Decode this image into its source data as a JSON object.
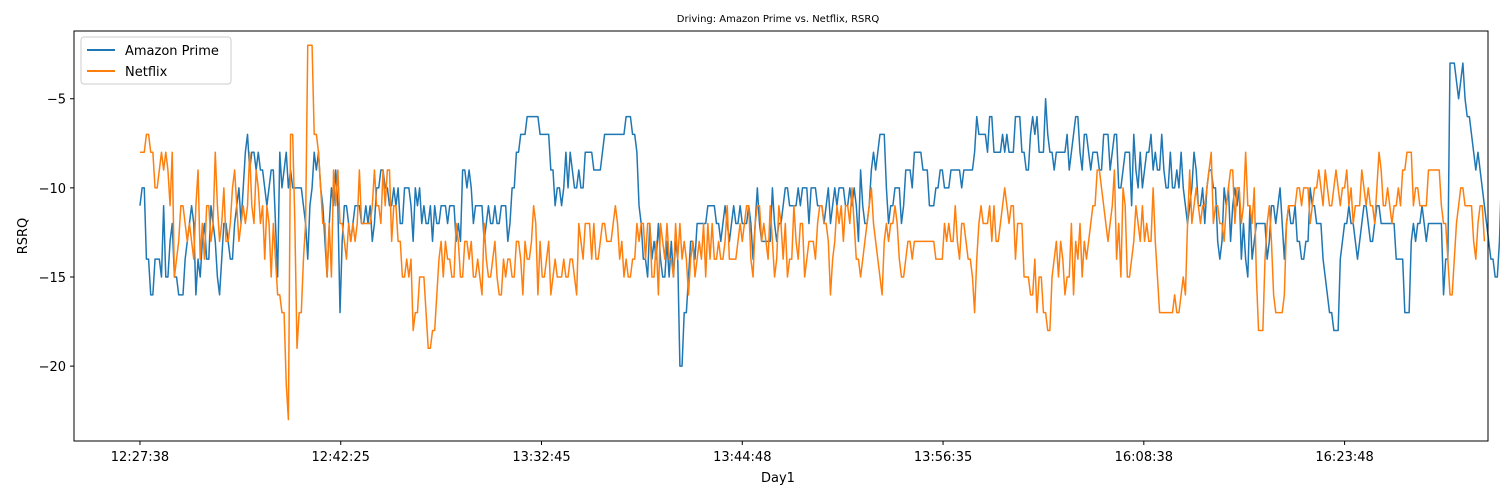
{
  "chart_data": {
    "type": "line",
    "title": "Driving: Amazon Prime vs. Netflix, RSRQ",
    "xlabel": "Day1",
    "ylabel": "RSRQ",
    "x_tick_labels": [
      "12:27:38",
      "12:42:25",
      "13:32:45",
      "13:44:48",
      "13:56:35",
      "16:08:38",
      "16:23:48"
    ],
    "x_tick_positions": [
      0,
      70,
      140,
      210,
      280,
      350,
      420
    ],
    "xlim": [
      -23,
      470
    ],
    "ylim": [
      -24.2,
      -1.2
    ],
    "y_ticks": [
      -20,
      -15,
      -10,
      -5
    ],
    "y_tick_labels": [
      "−20",
      "−15",
      "−10",
      "−5"
    ],
    "grid": false,
    "legend_position": "top-left",
    "series": [
      {
        "name": "Amazon Prime",
        "color": "#1f77b4",
        "values": [
          -11,
          -10,
          -10,
          -14,
          -14,
          -16,
          -16,
          -14,
          -14,
          -14,
          -15,
          -11,
          -15,
          -15,
          -13,
          -12,
          -15,
          -15,
          -16,
          -16,
          -16,
          -14,
          -13,
          -12,
          -11,
          -12,
          -16,
          -14,
          -15,
          -13,
          -12,
          -14,
          -14,
          -11,
          -12,
          -13,
          -15,
          -16,
          -14,
          -12,
          -12,
          -13,
          -14,
          -14,
          -12,
          -11,
          -10,
          -12,
          -10,
          -8,
          -7,
          -9,
          -8,
          -8,
          -9,
          -8,
          -9,
          -9,
          -10,
          -11,
          -10,
          -9,
          -9,
          -12,
          -15,
          -8,
          -10,
          -9,
          -8,
          -10,
          -9,
          -10,
          -10,
          -10,
          -10,
          -10,
          -11,
          -12,
          -14,
          -11,
          -10,
          -8,
          -9,
          -8,
          -10,
          -11,
          -13,
          -15,
          -12,
          -10,
          -11,
          -9,
          -11,
          -17,
          -13,
          -11,
          -11,
          -12,
          -13,
          -12,
          -11,
          -11,
          -11,
          -12,
          -12,
          -11,
          -12,
          -11,
          -13,
          -12,
          -10,
          -10,
          -9,
          -9,
          -10,
          -10,
          -11,
          -11,
          -10,
          -11,
          -10,
          -12,
          -12,
          -10,
          -10,
          -10,
          -11,
          -13,
          -10,
          -11,
          -10,
          -12,
          -11,
          -12,
          -12,
          -11,
          -13,
          -11,
          -12,
          -12,
          -11,
          -11,
          -11,
          -12,
          -11,
          -11,
          -11,
          -13,
          -12,
          -13,
          -9,
          -9,
          -10,
          -9,
          -10,
          -12,
          -11,
          -11,
          -11,
          -11,
          -13,
          -12,
          -11,
          -12,
          -12,
          -11,
          -12,
          -12,
          -11,
          -11,
          -11,
          -13,
          -12,
          -10,
          -10,
          -8,
          -8,
          -7,
          -7,
          -7,
          -6,
          -6,
          -6,
          -6,
          -6,
          -6,
          -7,
          -7,
          -7,
          -7,
          -7,
          -9,
          -9,
          -11,
          -10,
          -10,
          -11,
          -10,
          -8,
          -10,
          -8,
          -9,
          -10,
          -10,
          -9,
          -10,
          -10,
          -8,
          -8,
          -8,
          -8,
          -9,
          -9,
          -9,
          -9,
          -8,
          -7,
          -7,
          -7,
          -7,
          -7,
          -7,
          -7,
          -7,
          -7,
          -7,
          -6,
          -6,
          -6,
          -7,
          -7,
          -8,
          -11,
          -12,
          -14,
          -14,
          -15,
          -12,
          -14,
          -13,
          -14,
          -12,
          -14,
          -15,
          -15,
          -13,
          -15,
          -13,
          -15,
          -13,
          -14,
          -20,
          -20,
          -17,
          -17,
          -15,
          -13,
          -13,
          -14,
          -12,
          -12,
          -12,
          -12,
          -12,
          -11,
          -11,
          -11,
          -11,
          -12,
          -12,
          -13,
          -12,
          -11,
          -12,
          -13,
          -12,
          -11,
          -12,
          -12,
          -11,
          -12,
          -12,
          -12,
          -11,
          -12,
          -14,
          -12,
          -10,
          -12,
          -13,
          -13,
          -13,
          -13,
          -13,
          -10,
          -12,
          -13,
          -12,
          -12,
          -11,
          -10,
          -10,
          -11,
          -11,
          -11,
          -11,
          -10,
          -11,
          -10,
          -10,
          -10,
          -12,
          -10,
          -10,
          -10,
          -11,
          -11,
          -11,
          -12,
          -11,
          -10,
          -12,
          -11,
          -10,
          -11,
          -10,
          -10,
          -10,
          -11,
          -11,
          -10,
          -11,
          -10,
          -11,
          -13,
          -9,
          -11,
          -12,
          -12,
          -11,
          -9,
          -8,
          -9,
          -8,
          -7,
          -7,
          -7,
          -10,
          -12,
          -11,
          -11,
          -10,
          -10,
          -10,
          -12,
          -11,
          -9,
          -9,
          -9,
          -10,
          -8,
          -8,
          -8,
          -8,
          -9,
          -9,
          -9,
          -11,
          -11,
          -11,
          -10,
          -10,
          -9,
          -9,
          -10,
          -10,
          -10,
          -9,
          -9,
          -9,
          -9,
          -9,
          -10,
          -9,
          -9,
          -9,
          -9,
          -9,
          -8,
          -6,
          -7,
          -7,
          -7,
          -7,
          -8,
          -6,
          -6,
          -8,
          -8,
          -8,
          -8,
          -7,
          -8,
          -7,
          -8,
          -8,
          -8,
          -6,
          -6,
          -6,
          -8,
          -8,
          -9,
          -9,
          -7,
          -6,
          -7,
          -6,
          -8,
          -8,
          -8,
          -5,
          -7,
          -8,
          -8,
          -9,
          -8,
          -8,
          -8,
          -8,
          -8,
          -7,
          -9,
          -8,
          -7,
          -6,
          -6,
          -8,
          -9,
          -7,
          -7,
          -8,
          -9,
          -8,
          -8,
          -8,
          -9,
          -9,
          -7,
          -7,
          -7,
          -9,
          -8,
          -7,
          -7,
          -10,
          -10,
          -9,
          -8,
          -8,
          -8,
          -11,
          -7,
          -9,
          -10,
          -8,
          -10,
          -9,
          -8,
          -8,
          -7,
          -9,
          -8,
          -9,
          -9,
          -7,
          -9,
          -10,
          -10,
          -8,
          -10,
          -10,
          -9,
          -10,
          -8,
          -10,
          -11,
          -12,
          -11,
          -10,
          -8,
          -9,
          -11,
          -11,
          -10,
          -12,
          -10,
          -9,
          -9,
          -10,
          -10,
          -13,
          -14,
          -13,
          -10,
          -11,
          -10,
          -13,
          -11,
          -10,
          -11,
          -10,
          -14,
          -12,
          -14,
          -15,
          -11,
          -14,
          -13,
          -12,
          -12,
          -12,
          -12,
          -12,
          -14,
          -13,
          -11,
          -11,
          -12,
          -11,
          -10,
          -12,
          -14,
          -12,
          -11,
          -12,
          -12,
          -11,
          -13,
          -13,
          -14,
          -14,
          -13,
          -13,
          -10,
          -11,
          -11,
          -12,
          -12,
          -12,
          -14,
          -15,
          -16,
          -17,
          -17,
          -18,
          -18,
          -18,
          -14,
          -13,
          -12,
          -12,
          -11,
          -12,
          -12,
          -13,
          -14,
          -13,
          -12,
          -11,
          -11,
          -12,
          -13,
          -13,
          -12,
          -11,
          -11,
          -12,
          -12,
          -12,
          -12,
          -12,
          -12,
          -12,
          -14,
          -14,
          -14,
          -14,
          -17,
          -17,
          -17,
          -13,
          -12,
          -13,
          -12,
          -12,
          -11,
          -12,
          -13,
          -12,
          -12,
          -12,
          -12,
          -12,
          -12,
          -12,
          -16,
          -14,
          -14,
          -3,
          -3,
          -3,
          -4,
          -5,
          -4,
          -3,
          -5,
          -6,
          -6,
          -7,
          -8,
          -9,
          -8,
          -9,
          -10,
          -11,
          -12,
          -13,
          -14,
          -14,
          -15,
          -15,
          -13,
          -9,
          -9,
          -9
        ],
        "x_start": 0,
        "x_step": 0.75
      },
      {
        "name": "Netflix",
        "color": "#ff7f0e",
        "values": [
          -8,
          -8,
          -8,
          -7,
          -7,
          -8,
          -8,
          -10,
          -10,
          -9,
          -8,
          -9,
          -8,
          -9,
          -11,
          -8,
          -15,
          -14,
          -13,
          -11,
          -11,
          -12,
          -13,
          -12,
          -13,
          -14,
          -11,
          -9,
          -14,
          -12,
          -14,
          -11,
          -11,
          -13,
          -12,
          -8,
          -11,
          -13,
          -12,
          -10,
          -13,
          -13,
          -12,
          -10,
          -9,
          -11,
          -13,
          -12,
          -11,
          -12,
          -11,
          -8,
          -11,
          -12,
          -9,
          -10,
          -12,
          -11,
          -14,
          -11,
          -12,
          -15,
          -12,
          -14,
          -16,
          -16,
          -17,
          -17,
          -21,
          -23,
          -7,
          -7,
          -12,
          -19,
          -17,
          -17,
          -14,
          -12,
          -2,
          -2,
          -2,
          -7,
          -7,
          -8,
          -10,
          -12,
          -12,
          -15,
          -12,
          -15,
          -9,
          -11,
          -9,
          -12,
          -12,
          -13,
          -14,
          -12,
          -13,
          -12,
          -13,
          -12,
          -9,
          -12,
          -12,
          -12,
          -12,
          -12,
          -11,
          -9,
          -11,
          -11,
          -12,
          -9,
          -11,
          -9,
          -9,
          -13,
          -11,
          -11,
          -13,
          -13,
          -15,
          -15,
          -14,
          -15,
          -14,
          -18,
          -17,
          -17,
          -15,
          -15,
          -15,
          -17,
          -19,
          -19,
          -18,
          -18,
          -16,
          -14,
          -13,
          -15,
          -13,
          -14,
          -14,
          -15,
          -15,
          -12,
          -13,
          -15,
          -15,
          -13,
          -13,
          -14,
          -13,
          -15,
          -15,
          -14,
          -15,
          -16,
          -12,
          -14,
          -15,
          -15,
          -14,
          -13,
          -15,
          -16,
          -16,
          -14,
          -15,
          -14,
          -14,
          -15,
          -15,
          -13,
          -13,
          -14,
          -16,
          -13,
          -14,
          -14,
          -13,
          -11,
          -12,
          -16,
          -13,
          -15,
          -15,
          -14,
          -13,
          -16,
          -15,
          -14,
          -15,
          -15,
          -15,
          -14,
          -15,
          -15,
          -14,
          -14,
          -15,
          -16,
          -12,
          -13,
          -14,
          -12,
          -12,
          -12,
          -14,
          -12,
          -14,
          -14,
          -13,
          -12,
          -12,
          -13,
          -13,
          -13,
          -12,
          -11,
          -12,
          -14,
          -13,
          -15,
          -14,
          -15,
          -15,
          -14,
          -14,
          -12,
          -13,
          -12,
          -12,
          -14,
          -12,
          -12,
          -15,
          -15,
          -13,
          -16,
          -12,
          -13,
          -14,
          -12,
          -14,
          -14,
          -15,
          -12,
          -14,
          -12,
          -14,
          -13,
          -14,
          -16,
          -14,
          -13,
          -15,
          -14,
          -13,
          -14,
          -12,
          -15,
          -12,
          -14,
          -12,
          -14,
          -14,
          -13,
          -14,
          -14,
          -13,
          -11,
          -14,
          -14,
          -14,
          -14,
          -13,
          -12,
          -13,
          -12,
          -11,
          -11,
          -14,
          -15,
          -12,
          -11,
          -11,
          -13,
          -12,
          -13,
          -14,
          -11,
          -13,
          -15,
          -14,
          -11,
          -12,
          -14,
          -12,
          -15,
          -14,
          -14,
          -11,
          -13,
          -14,
          -12,
          -12,
          -15,
          -14,
          -13,
          -13,
          -13,
          -14,
          -12,
          -11,
          -11,
          -12,
          -12,
          -13,
          -16,
          -14,
          -13,
          -11,
          -12,
          -11,
          -13,
          -11,
          -11,
          -12,
          -10,
          -12,
          -14,
          -14,
          -15,
          -14,
          -13,
          -12,
          -11,
          -10,
          -12,
          -13,
          -14,
          -15,
          -16,
          -13,
          -12,
          -13,
          -12,
          -12,
          -11,
          -12,
          -14,
          -15,
          -15,
          -14,
          -13,
          -13,
          -14,
          -13,
          -13,
          -13,
          -13,
          -13,
          -13,
          -13,
          -13,
          -13,
          -13,
          -14,
          -14,
          -14,
          -14,
          -12,
          -13,
          -12,
          -13,
          -13,
          -11,
          -13,
          -14,
          -12,
          -12,
          -13,
          -14,
          -14,
          -15,
          -17,
          -14,
          -12,
          -11,
          -12,
          -12,
          -12,
          -11,
          -13,
          -11,
          -13,
          -13,
          -12,
          -11,
          -10,
          -11,
          -12,
          -11,
          -11,
          -14,
          -12,
          -12,
          -12,
          -15,
          -15,
          -15,
          -16,
          -16,
          -14,
          -17,
          -15,
          -15,
          -17,
          -17,
          -18,
          -18,
          -15,
          -14,
          -13,
          -15,
          -13,
          -14,
          -16,
          -15,
          -15,
          -12,
          -16,
          -13,
          -14,
          -12,
          -15,
          -13,
          -14,
          -13,
          -12,
          -11,
          -11,
          -9,
          -9,
          -10,
          -11,
          -12,
          -13,
          -12,
          -11,
          -9,
          -14,
          -12,
          -15,
          -10,
          -11,
          -15,
          -15,
          -14,
          -13,
          -11,
          -12,
          -13,
          -11,
          -13,
          -12,
          -13,
          -13,
          -10,
          -13,
          -15,
          -17,
          -17,
          -17,
          -17,
          -17,
          -17,
          -17,
          -16,
          -17,
          -17,
          -16,
          -15,
          -16,
          -12,
          -9,
          -12,
          -11,
          -10,
          -11,
          -12,
          -11,
          -11,
          -10,
          -9,
          -8,
          -12,
          -11,
          -11,
          -12,
          -12,
          -13,
          -11,
          -10,
          -9,
          -9,
          -12,
          -10,
          -10,
          -12,
          -11,
          -8,
          -11,
          -11,
          -12,
          -10,
          -15,
          -18,
          -18,
          -18,
          -14,
          -12,
          -11,
          -13,
          -16,
          -17,
          -17,
          -17,
          -17,
          -16,
          -12,
          -11,
          -11,
          -11,
          -11,
          -10,
          -10,
          -11,
          -10,
          -10,
          -10,
          -12,
          -11,
          -10,
          -10,
          -9,
          -10,
          -11,
          -9,
          -10,
          -11,
          -11,
          -10,
          -9,
          -10,
          -11,
          -10,
          -10,
          -9,
          -11,
          -10,
          -12,
          -11,
          -11,
          -11,
          -9,
          -10,
          -11,
          -10,
          -11,
          -11,
          -12,
          -10,
          -8,
          -9,
          -11,
          -11,
          -10,
          -11,
          -12,
          -11,
          -11,
          -10,
          -11,
          -9,
          -9,
          -8,
          -8,
          -8,
          -11,
          -10,
          -10,
          -11,
          -11,
          -11,
          -11,
          -9,
          -9,
          -9,
          -9,
          -9,
          -9,
          -11,
          -12,
          -12,
          -14,
          -16,
          -16,
          -14,
          -12,
          -11,
          -10,
          -10,
          -11,
          -11,
          -11,
          -11,
          -13,
          -14,
          -12,
          -11,
          -11,
          -13
        ],
        "x_start": 0,
        "x_step": 0.75
      }
    ]
  }
}
